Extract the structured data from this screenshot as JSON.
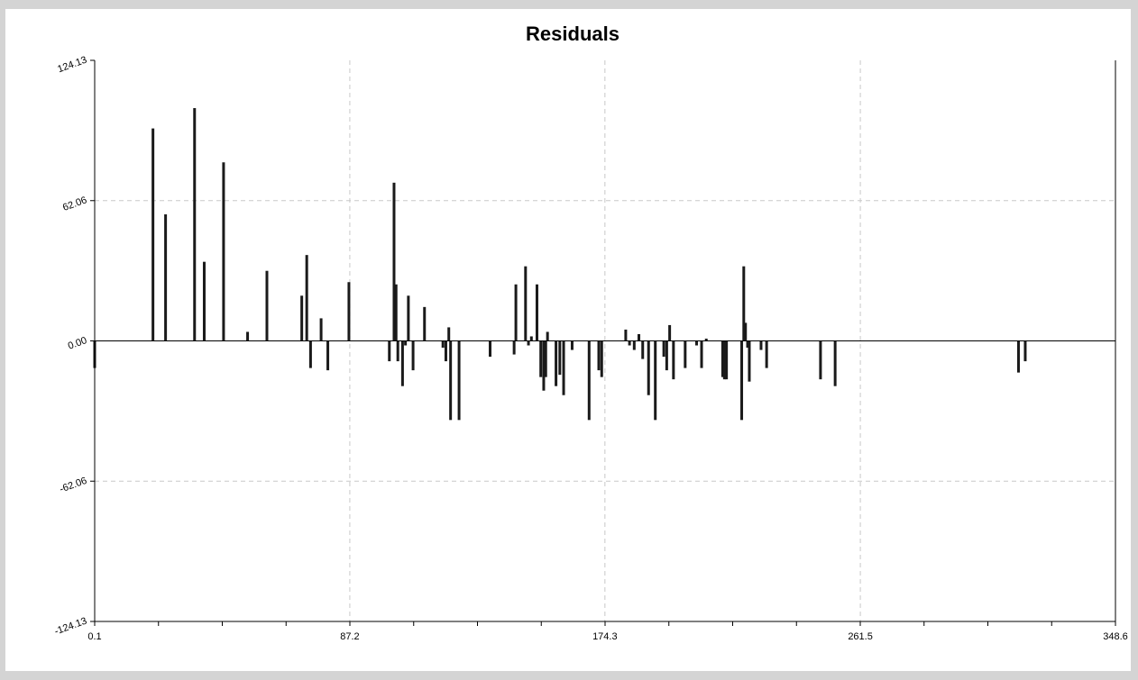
{
  "chart_data": {
    "type": "bar",
    "title": "Residuals",
    "xlabel": "",
    "ylabel": "",
    "xlim": [
      0.1,
      348.6
    ],
    "ylim": [
      -124.13,
      124.13
    ],
    "x_tick_labels": [
      "0.1",
      "87.2",
      "174.3",
      "261.5",
      "348.6"
    ],
    "y_tick_labels": [
      "124.13",
      "62.06",
      "0.00",
      "-62.06",
      "-124.13"
    ],
    "grid": true,
    "colors": {
      "background": "#d4d4d4",
      "plot": "#ffffff",
      "bars": "#1a1a1a",
      "grid": "#c8c8c8"
    },
    "x": [
      0.1,
      20.0,
      24.3,
      34.2,
      37.5,
      44.1,
      52.3,
      58.9,
      70.8,
      72.5,
      73.8,
      77.4,
      79.7,
      86.9,
      100.7,
      102.3,
      103.0,
      103.6,
      105.2,
      106.2,
      107.2,
      108.8,
      112.7,
      119.0,
      120.0,
      121.0,
      121.6,
      124.5,
      135.1,
      143.3,
      143.9,
      147.2,
      148.2,
      149.2,
      151.1,
      152.4,
      153.4,
      154.1,
      154.7,
      157.6,
      158.9,
      160.2,
      163.1,
      168.9,
      172.2,
      173.2,
      181.4,
      182.7,
      184.3,
      185.9,
      187.2,
      189.2,
      191.5,
      194.4,
      195.4,
      196.4,
      197.7,
      201.7,
      205.6,
      207.3,
      208.9,
      214.5,
      215.1,
      215.8,
      221.0,
      221.7,
      222.3,
      223.0,
      223.6,
      227.6,
      229.5,
      247.9,
      252.9,
      315.5,
      317.8
    ],
    "values": [
      -12,
      94,
      56,
      103,
      35,
      79,
      4,
      31,
      20,
      38,
      -12,
      10,
      -13,
      26,
      -9,
      70,
      25,
      -9,
      -20,
      -2,
      20,
      -13,
      15,
      -3,
      -9,
      6,
      -35,
      -35,
      -7,
      -6,
      25,
      33,
      -2,
      2,
      25,
      -16,
      -22,
      -16,
      4,
      -20,
      -15,
      -24,
      -4,
      -35,
      -13,
      -16,
      5,
      -2,
      -4,
      3,
      -8,
      -24,
      -35,
      -7,
      -13,
      7,
      -17,
      -12,
      -2,
      -12,
      1,
      -16,
      -17,
      -17,
      -35,
      33,
      8,
      -3,
      -18,
      -4,
      -12,
      -17,
      -20,
      -14,
      -9
    ]
  }
}
